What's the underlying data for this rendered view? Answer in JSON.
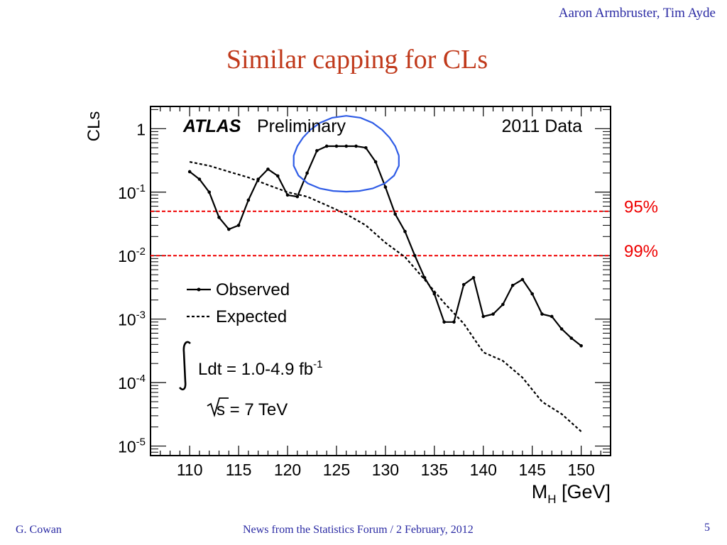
{
  "header": {
    "authors": "Aaron Armbruster, Tim Ayde",
    "title": "Similar capping for CLs"
  },
  "footer": {
    "author": "G. Cowan",
    "event": "News from the Statistics Forum / 2 February, 2012",
    "page": "5"
  },
  "chart_data": {
    "type": "line",
    "xlabel_main": "M",
    "xlabel_sub": "H",
    "xlabel_unit": " [GeV]",
    "ylabel": "CLs",
    "xlim": [
      106,
      153
    ],
    "ylim_log10": [
      -5.15,
      0.35
    ],
    "log_y": true,
    "x_ticks": [
      110,
      115,
      120,
      125,
      130,
      135,
      140,
      145,
      150
    ],
    "y_ticks": [
      {
        "exp": 0,
        "label": "1"
      },
      {
        "exp": -1,
        "base": "10",
        "sup": "-1"
      },
      {
        "exp": -2,
        "base": "10",
        "sup": "-2"
      },
      {
        "exp": -3,
        "base": "10",
        "sup": "-3"
      },
      {
        "exp": -4,
        "base": "10",
        "sup": "-4"
      },
      {
        "exp": -5,
        "base": "10",
        "sup": "-5"
      }
    ],
    "annotations": {
      "atlas": "ATLAS",
      "preliminary": "Preliminary",
      "dataset": "2011 Data",
      "lumi_prefix": "Ldt = 1.0-4.9 fb",
      "lumi_sup": "-1",
      "energy": "s = 7 TeV"
    },
    "legend": {
      "placement": "left",
      "observed": "Observed",
      "expected": "Expected"
    },
    "reference_lines": [
      {
        "label": "95%",
        "value": 0.05,
        "color": "#ee0000"
      },
      {
        "label": "99%",
        "value": 0.01,
        "color": "#ee0000"
      }
    ],
    "highlight_circle": {
      "x_range": [
        121.5,
        130.5
      ],
      "log10_range": [
        -1.0,
        0.15
      ],
      "color": "#2f5ce6"
    },
    "series": [
      {
        "name": "Observed",
        "style": "solid-markers",
        "x": [
          110,
          111,
          112,
          113,
          114,
          115,
          116,
          117,
          118,
          119,
          120,
          121,
          122,
          123,
          124,
          125,
          126,
          127,
          128,
          129,
          130,
          131,
          132,
          133,
          134,
          135,
          136,
          137,
          138,
          139,
          140,
          141,
          142,
          143,
          144,
          145,
          146,
          147,
          148,
          149,
          150
        ],
        "y": [
          0.21,
          0.16,
          0.1,
          0.04,
          0.026,
          0.03,
          0.075,
          0.16,
          0.23,
          0.18,
          0.09,
          0.085,
          0.2,
          0.45,
          0.53,
          0.53,
          0.53,
          0.53,
          0.5,
          0.3,
          0.12,
          0.045,
          0.024,
          0.01,
          0.0045,
          0.0025,
          0.0009,
          0.0009,
          0.0035,
          0.0045,
          0.0011,
          0.0012,
          0.0017,
          0.0034,
          0.0042,
          0.0025,
          0.0012,
          0.0011,
          0.0007,
          0.0005,
          0.00038
        ]
      },
      {
        "name": "Expected",
        "style": "dashed",
        "x": [
          110,
          112,
          114,
          116,
          118,
          120,
          122,
          124,
          126,
          128,
          130,
          132,
          134,
          136,
          138,
          140,
          142,
          144,
          146,
          148,
          150
        ],
        "y": [
          0.3,
          0.26,
          0.21,
          0.17,
          0.13,
          0.1,
          0.085,
          0.062,
          0.045,
          0.03,
          0.016,
          0.0095,
          0.0042,
          0.0018,
          0.00085,
          0.0003,
          0.00022,
          0.00012,
          5e-05,
          3.2e-05,
          1.7e-05
        ]
      }
    ]
  }
}
